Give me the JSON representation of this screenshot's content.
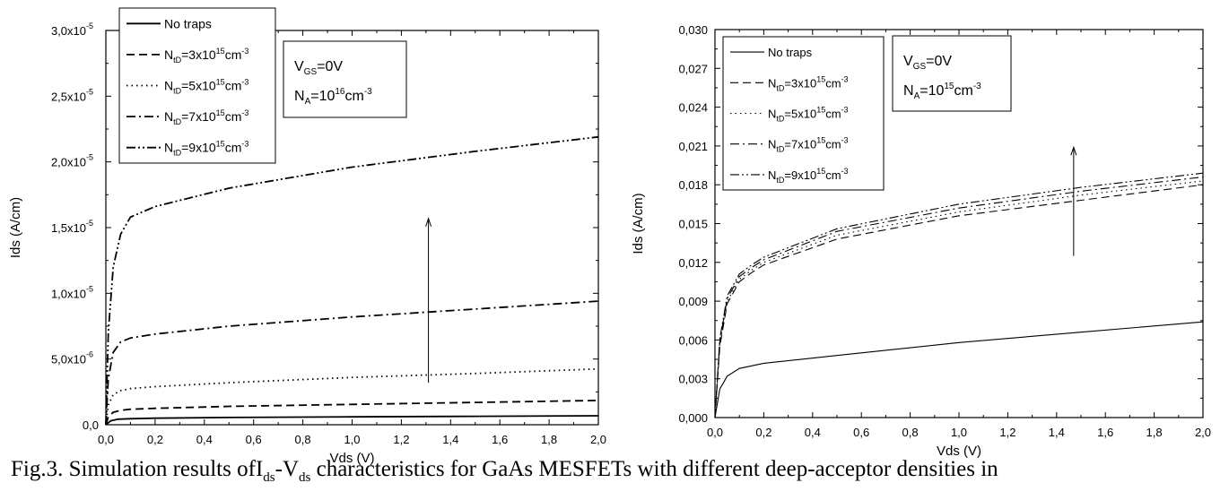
{
  "chart_data": [
    {
      "type": "line",
      "xlabel": "Vds (V)",
      "ylabel": "Ids (A/cm)",
      "xlim": [
        0,
        2
      ],
      "ylim": [
        0,
        3e-05
      ],
      "xticks": [
        "0,0",
        "0,2",
        "0,4",
        "0,6",
        "0,8",
        "1,0",
        "1,2",
        "1,4",
        "1,6",
        "1,8",
        "2,0"
      ],
      "yticks": [
        {
          "m": "0,0",
          "e": ""
        },
        {
          "m": "5,0x10",
          "e": "-6"
        },
        {
          "m": "1,0x10",
          "e": "-5"
        },
        {
          "m": "1,5x10",
          "e": "-5"
        },
        {
          "m": "2,0x10",
          "e": "-5"
        },
        {
          "m": "2,5x10",
          "e": "-5"
        },
        {
          "m": "3,0x10",
          "e": "-5"
        }
      ],
      "annotation": {
        "vgs": "V",
        "vgs_sub": "GS",
        "vgs_val": "=0V",
        "na": "N",
        "na_sub": "A",
        "na_val": "=10",
        "na_exp": "16",
        "na_unit": "cm",
        "na_unit_exp": "-3"
      },
      "arrow": {
        "x": 1.31,
        "y_from": 3.2e-06,
        "y_to": 1.57e-05
      },
      "series": [
        {
          "name": "No traps",
          "style": "solid",
          "name_parts": null,
          "points": [
            [
              0,
              0
            ],
            [
              0.02,
              3e-07
            ],
            [
              0.05,
              4.2e-07
            ],
            [
              0.1,
              4.6e-07
            ],
            [
              0.2,
              5e-07
            ],
            [
              0.5,
              5.5e-07
            ],
            [
              1.0,
              6e-07
            ],
            [
              1.5,
              6.4e-07
            ],
            [
              2.0,
              6.8e-07
            ]
          ]
        },
        {
          "name": "NtD=3x10^15cm^-3",
          "style": "dash",
          "name_parts": {
            "a": "N",
            "sub": "tD",
            "b": "=3x10",
            "sup": "15",
            "c": "cm",
            "sup2": "-3"
          },
          "points": [
            [
              0,
              0
            ],
            [
              0.01,
              6e-07
            ],
            [
              0.03,
              9.5e-07
            ],
            [
              0.06,
              1.1e-06
            ],
            [
              0.1,
              1.18e-06
            ],
            [
              0.2,
              1.25e-06
            ],
            [
              0.5,
              1.4e-06
            ],
            [
              1.0,
              1.55e-06
            ],
            [
              1.5,
              1.7e-06
            ],
            [
              2.0,
              1.85e-06
            ]
          ]
        },
        {
          "name": "NtD=5x10^15cm^-3",
          "style": "dot",
          "name_parts": {
            "a": "N",
            "sub": "tD",
            "b": "=5x10",
            "sup": "15",
            "c": "cm",
            "sup2": "-3"
          },
          "points": [
            [
              0,
              0
            ],
            [
              0.01,
              1.5e-06
            ],
            [
              0.03,
              2.3e-06
            ],
            [
              0.06,
              2.6e-06
            ],
            [
              0.1,
              2.75e-06
            ],
            [
              0.2,
              2.9e-06
            ],
            [
              0.5,
              3.2e-06
            ],
            [
              1.0,
              3.6e-06
            ],
            [
              1.5,
              3.9e-06
            ],
            [
              2.0,
              4.25e-06
            ]
          ]
        },
        {
          "name": "NtD=7x10^15cm^-3",
          "style": "dashdot",
          "name_parts": {
            "a": "N",
            "sub": "tD",
            "b": "=7x10",
            "sup": "15",
            "c": "cm",
            "sup2": "-3"
          },
          "points": [
            [
              0,
              0
            ],
            [
              0.01,
              3.5e-06
            ],
            [
              0.03,
              5.5e-06
            ],
            [
              0.06,
              6.3e-06
            ],
            [
              0.1,
              6.6e-06
            ],
            [
              0.2,
              6.9e-06
            ],
            [
              0.5,
              7.5e-06
            ],
            [
              1.0,
              8.2e-06
            ],
            [
              1.5,
              8.8e-06
            ],
            [
              2.0,
              9.4e-06
            ]
          ]
        },
        {
          "name": "NtD=9x10^15cm^-3",
          "style": "dashdotdot",
          "name_parts": {
            "a": "N",
            "sub": "tD",
            "b": "=9x10",
            "sup": "15",
            "c": "cm",
            "sup2": "-3"
          },
          "points": [
            [
              0,
              0
            ],
            [
              0.01,
              7e-06
            ],
            [
              0.03,
              1.2e-05
            ],
            [
              0.06,
              1.45e-05
            ],
            [
              0.1,
              1.58e-05
            ],
            [
              0.2,
              1.66e-05
            ],
            [
              0.5,
              1.8e-05
            ],
            [
              1.0,
              1.96e-05
            ],
            [
              1.5,
              2.08e-05
            ],
            [
              2.0,
              2.19e-05
            ]
          ]
        }
      ]
    },
    {
      "type": "line",
      "xlabel": "Vds (V)",
      "ylabel": "Ids (A/cm)",
      "xlim": [
        0,
        2
      ],
      "ylim": [
        0,
        0.03
      ],
      "xticks": [
        "0,0",
        "0,2",
        "0,4",
        "0,6",
        "0,8",
        "1,0",
        "1,2",
        "1,4",
        "1,6",
        "1,8",
        "2,0"
      ],
      "yticks": [
        {
          "m": "0,000",
          "e": ""
        },
        {
          "m": "0,003",
          "e": ""
        },
        {
          "m": "0,006",
          "e": ""
        },
        {
          "m": "0,009",
          "e": ""
        },
        {
          "m": "0,012",
          "e": ""
        },
        {
          "m": "0,015",
          "e": ""
        },
        {
          "m": "0,018",
          "e": ""
        },
        {
          "m": "0,021",
          "e": ""
        },
        {
          "m": "0,024",
          "e": ""
        },
        {
          "m": "0,027",
          "e": ""
        },
        {
          "m": "0,030",
          "e": ""
        }
      ],
      "annotation": {
        "vgs": "V",
        "vgs_sub": "GS",
        "vgs_val": "=0V",
        "na": "N",
        "na_sub": "A",
        "na_val": "=10",
        "na_exp": "15",
        "na_unit": "cm",
        "na_unit_exp": "-3"
      },
      "arrow": {
        "x": 1.47,
        "y_from": 0.0125,
        "y_to": 0.0209
      },
      "series": [
        {
          "name": "No traps",
          "style": "solid",
          "name_parts": null,
          "points": [
            [
              0,
              0
            ],
            [
              0.02,
              0.0022
            ],
            [
              0.05,
              0.0032
            ],
            [
              0.1,
              0.0038
            ],
            [
              0.2,
              0.0042
            ],
            [
              0.5,
              0.0048
            ],
            [
              1.0,
              0.0058
            ],
            [
              1.5,
              0.0066
            ],
            [
              2.0,
              0.0074
            ]
          ]
        },
        {
          "name": "NtD=3x10^15cm^-3",
          "style": "dash",
          "name_parts": {
            "a": "N",
            "sub": "tD",
            "b": "=3x10",
            "sup": "15",
            "c": "cm",
            "sup2": "-3"
          },
          "points": [
            [
              0,
              0
            ],
            [
              0.02,
              0.0055
            ],
            [
              0.05,
              0.0088
            ],
            [
              0.1,
              0.0105
            ],
            [
              0.15,
              0.0112
            ],
            [
              0.2,
              0.0118
            ],
            [
              0.5,
              0.0138
            ],
            [
              1.0,
              0.0156
            ],
            [
              1.5,
              0.0168
            ],
            [
              2.0,
              0.018
            ]
          ]
        },
        {
          "name": "NtD=5x10^15cm^-3",
          "style": "dot",
          "name_parts": {
            "a": "N",
            "sub": "tD",
            "b": "=5x10",
            "sup": "15",
            "c": "cm",
            "sup2": "-3"
          },
          "points": [
            [
              0,
              0
            ],
            [
              0.02,
              0.0057
            ],
            [
              0.05,
              0.009
            ],
            [
              0.1,
              0.0107
            ],
            [
              0.15,
              0.0114
            ],
            [
              0.2,
              0.012
            ],
            [
              0.5,
              0.0141
            ],
            [
              1.0,
              0.0159
            ],
            [
              1.5,
              0.0172
            ],
            [
              2.0,
              0.0183
            ]
          ]
        },
        {
          "name": "NtD=7x10^15cm^-3",
          "style": "dashdot",
          "name_parts": {
            "a": "N",
            "sub": "tD",
            "b": "=7x10",
            "sup": "15",
            "c": "cm",
            "sup2": "-3"
          },
          "points": [
            [
              0,
              0
            ],
            [
              0.02,
              0.0059
            ],
            [
              0.05,
              0.0092
            ],
            [
              0.1,
              0.0109
            ],
            [
              0.15,
              0.0116
            ],
            [
              0.2,
              0.0122
            ],
            [
              0.5,
              0.0144
            ],
            [
              1.0,
              0.0162
            ],
            [
              1.5,
              0.0175
            ],
            [
              2.0,
              0.0186
            ]
          ]
        },
        {
          "name": "NtD=9x10^15cm^-3",
          "style": "dashdotdot",
          "name_parts": {
            "a": "N",
            "sub": "tD",
            "b": "=9x10",
            "sup": "15",
            "c": "cm",
            "sup2": "-3"
          },
          "points": [
            [
              0,
              0
            ],
            [
              0.02,
              0.0061
            ],
            [
              0.05,
              0.0094
            ],
            [
              0.1,
              0.0111
            ],
            [
              0.15,
              0.0118
            ],
            [
              0.2,
              0.0124
            ],
            [
              0.5,
              0.0146
            ],
            [
              1.0,
              0.0165
            ],
            [
              1.5,
              0.0178
            ],
            [
              2.0,
              0.0189
            ]
          ]
        }
      ]
    }
  ],
  "caption": {
    "prefix": "Fig.3. Simulation results of",
    "i": "I",
    "i_sub": "ds",
    "dash": "-",
    "v": "V",
    "v_sub": "ds",
    "suffix": " characteristics for GaAs MESFETs with different deep-acceptor densities in"
  }
}
